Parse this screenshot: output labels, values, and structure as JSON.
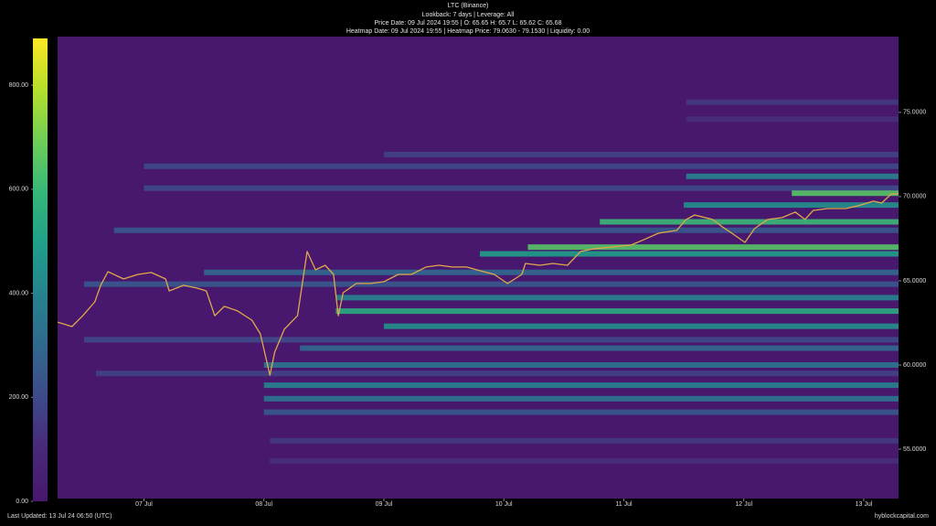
{
  "chart_data": {
    "type": "heatmap",
    "title": "LTC (Binance)",
    "subtitles": [
      "Lookback: 7 days | Leverage: All",
      "Price Date: 09 Jul 2024 19:55 | O: 65.65 H: 65.7 L: 65.62 C: 65.68",
      "Heatmap Date: 09 Jul 2024 19:55 | Heatmap Price: 79.0630 - 79.1530 | Liquidity: 0.00"
    ],
    "footer_left": "Last Updated: 13 Jul 24 06:50 (UTC)",
    "footer_right": "hyblockcapital.com",
    "xlim": [
      6.28,
      13.29
    ],
    "xticks": [
      {
        "value": 7,
        "label": "07 Jul"
      },
      {
        "value": 8,
        "label": "08 Jul"
      },
      {
        "value": 9,
        "label": "09 Jul"
      },
      {
        "value": 10,
        "label": "10 Jul"
      },
      {
        "value": 11,
        "label": "11 Jul"
      },
      {
        "value": 12,
        "label": "12 Jul"
      },
      {
        "value": 13,
        "label": "13 Jul"
      }
    ],
    "ylim": [
      52.07,
      79.5
    ],
    "yticks": [
      {
        "value": 55,
        "label": "55.0000"
      },
      {
        "value": 60,
        "label": "60.0000"
      },
      {
        "value": 65,
        "label": "65.0000"
      },
      {
        "value": 70,
        "label": "70.0000"
      },
      {
        "value": 75,
        "label": "75.0000"
      }
    ],
    "clim": [
      0,
      890
    ],
    "cticks": [
      {
        "value": 0,
        "label": "0.00"
      },
      {
        "value": 200,
        "label": "200.00"
      },
      {
        "value": 400,
        "label": "400.00"
      },
      {
        "value": 600,
        "label": "600.00"
      },
      {
        "value": 800,
        "label": "800.00"
      }
    ],
    "series": [
      {
        "color": "#e0a84a",
        "x": [
          6.28,
          6.4,
          6.49,
          6.59,
          6.64,
          6.7,
          6.83,
          6.95,
          7.06,
          7.18,
          7.21,
          7.33,
          7.44,
          7.52,
          7.59,
          7.67,
          7.78,
          7.9,
          7.97,
          8.05,
          8.09,
          8.17,
          8.28,
          8.36,
          8.43,
          8.51,
          8.58,
          8.62,
          8.66,
          8.77,
          8.89,
          9.0,
          9.12,
          9.23,
          9.35,
          9.46,
          9.57,
          9.69,
          9.8,
          9.92,
          10.03,
          10.15,
          10.18,
          10.3,
          10.41,
          10.53,
          10.64,
          10.75,
          10.91,
          11.06,
          11.17,
          11.29,
          11.44,
          11.52,
          11.59,
          11.74,
          11.82,
          11.9,
          12.01,
          12.09,
          12.2,
          12.32,
          12.43,
          12.51,
          12.58,
          12.7,
          12.85,
          12.96,
          13.08,
          13.15,
          13.23,
          13.29
        ],
        "values": [
          62.55,
          62.28,
          62.93,
          63.75,
          64.73,
          65.54,
          65.11,
          65.38,
          65.49,
          65.11,
          64.4,
          64.73,
          64.57,
          64.4,
          62.93,
          63.48,
          63.21,
          62.66,
          61.85,
          59.4,
          60.76,
          62.12,
          62.93,
          66.74,
          65.65,
          65.92,
          65.38,
          62.93,
          64.29,
          64.84,
          64.84,
          64.95,
          65.38,
          65.38,
          65.82,
          65.92,
          65.82,
          65.82,
          65.6,
          65.38,
          64.84,
          65.38,
          66.03,
          65.92,
          66.03,
          65.92,
          66.74,
          66.9,
          67.01,
          67.12,
          67.45,
          67.83,
          67.99,
          68.64,
          68.91,
          68.64,
          68.21,
          67.83,
          67.28,
          68.1,
          68.64,
          68.75,
          69.08,
          68.64,
          69.18,
          69.29,
          69.29,
          69.46,
          69.73,
          69.62,
          70.16,
          70.16
        ]
      }
    ],
    "heatmap": [
      {
        "price": 75.6,
        "start": 11.52,
        "value": 150
      },
      {
        "price": 74.6,
        "start": 11.52,
        "value": 120
      },
      {
        "price": 72.5,
        "start": 9.0,
        "value": 180
      },
      {
        "price": 71.8,
        "start": 7.0,
        "value": 200
      },
      {
        "price": 71.2,
        "start": 11.52,
        "value": 400
      },
      {
        "price": 70.5,
        "start": 7.0,
        "value": 200
      },
      {
        "price": 70.2,
        "start": 12.4,
        "value": 650
      },
      {
        "price": 69.5,
        "start": 11.5,
        "value": 450
      },
      {
        "price": 68.5,
        "start": 10.8,
        "value": 600
      },
      {
        "price": 68.0,
        "start": 6.75,
        "value": 250
      },
      {
        "price": 67.0,
        "start": 10.2,
        "value": 650
      },
      {
        "price": 66.6,
        "start": 9.8,
        "value": 500
      },
      {
        "price": 65.5,
        "start": 7.5,
        "value": 300
      },
      {
        "price": 64.8,
        "start": 6.5,
        "value": 250
      },
      {
        "price": 64.0,
        "start": 8.6,
        "value": 400
      },
      {
        "price": 63.2,
        "start": 8.6,
        "value": 550
      },
      {
        "price": 62.3,
        "start": 9.0,
        "value": 450
      },
      {
        "price": 61.5,
        "start": 6.5,
        "value": 200
      },
      {
        "price": 61.0,
        "start": 8.3,
        "value": 300
      },
      {
        "price": 60.0,
        "start": 8.0,
        "value": 350
      },
      {
        "price": 59.5,
        "start": 6.6,
        "value": 180
      },
      {
        "price": 58.8,
        "start": 8.0,
        "value": 400
      },
      {
        "price": 58.0,
        "start": 8.0,
        "value": 350
      },
      {
        "price": 57.2,
        "start": 8.0,
        "value": 250
      },
      {
        "price": 55.5,
        "start": 8.05,
        "value": 150
      },
      {
        "price": 54.3,
        "start": 8.05,
        "value": 120
      }
    ]
  }
}
